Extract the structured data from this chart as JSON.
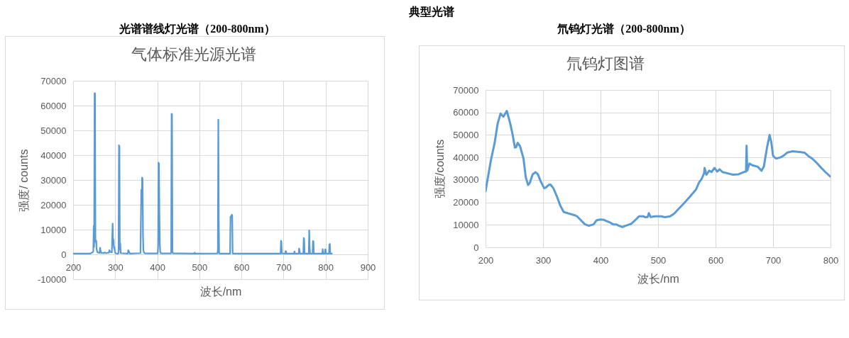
{
  "chart_data": [
    {
      "type": "line",
      "title": "光谱谱线灯光谱（200-800nm）",
      "subtitle": "气体标准光源光谱",
      "xlabel": "波长/nm",
      "ylabel": "强度/ counts",
      "annotations": [
        "典型光谱"
      ],
      "series": [
        {
          "color": "#5b9bd5",
          "x": [
            200,
            240,
            246,
            248,
            249,
            250,
            251,
            252,
            253,
            255,
            256,
            258,
            263,
            264,
            265,
            267,
            272,
            275,
            278,
            285,
            286,
            288,
            292,
            293,
            294,
            295,
            296,
            297,
            298,
            299,
            300,
            302,
            306,
            308,
            309,
            310,
            311,
            312,
            313,
            330,
            331,
            333,
            335,
            360,
            362,
            363,
            364,
            365,
            366,
            367,
            369,
            372,
            401,
            402,
            403,
            404,
            405,
            406,
            407,
            409,
            433,
            434,
            435,
            436,
            438,
            488,
            489,
            490,
            543,
            544,
            545,
            546,
            547,
            549,
            573,
            574,
            575,
            576,
            577,
            578,
            579,
            581,
            693,
            694,
            695,
            696,
            704,
            705,
            706,
            707,
            725,
            726,
            727,
            736,
            737,
            738,
            739,
            747,
            748,
            749,
            750,
            760,
            761,
            762,
            763,
            769,
            770,
            771,
            772,
            792,
            793,
            794,
            798,
            799,
            800,
            801,
            808,
            809,
            810,
            811,
            815
          ],
          "values": [
            300,
            300,
            800,
            1200,
            11500,
            3000,
            65000,
            65000,
            5000,
            5500,
            2000,
            800,
            600,
            2700,
            1500,
            600,
            500,
            800,
            500,
            700,
            1700,
            1000,
            800,
            7000,
            12400,
            4000,
            6000,
            2500,
            3000,
            1500,
            600,
            400,
            300,
            500,
            44000,
            43500,
            2000,
            4500,
            500,
            300,
            1700,
            1000,
            300,
            500,
            26000,
            20000,
            31000,
            30500,
            8000,
            1500,
            600,
            400,
            400,
            3500,
            37000,
            36500,
            17000,
            4000,
            1000,
            400,
            400,
            56700,
            56500,
            1000,
            400,
            300,
            700,
            300,
            400,
            2000,
            54300,
            14000,
            500,
            300,
            300,
            15200,
            15000,
            15500,
            16000,
            15800,
            400,
            300,
            300,
            5500,
            5000,
            400,
            300,
            1300,
            1200,
            300,
            300,
            1200,
            300,
            300,
            2400,
            1500,
            300,
            300,
            6600,
            6200,
            300,
            300,
            9700,
            3000,
            300,
            300,
            5400,
            5200,
            300,
            300,
            2100,
            300,
            300,
            2000,
            1900,
            300,
            300,
            4000,
            4200,
            300,
            300
          ]
        }
      ],
      "xlim": [
        200,
        900
      ],
      "xticks": [
        200,
        300,
        400,
        500,
        600,
        700,
        800,
        900
      ],
      "ylim": [
        -10000,
        70000
      ],
      "yticks": [
        -10000,
        0,
        10000,
        20000,
        30000,
        40000,
        50000,
        60000,
        70000
      ],
      "grid": true
    },
    {
      "type": "line",
      "title": "氘钨灯光谱（200-800nm）",
      "subtitle": "氘钨灯图谱",
      "xlabel": "波长/nm",
      "ylabel": "强度/counts",
      "series": [
        {
          "color": "#5b9bd5",
          "x": [
            200,
            209,
            216,
            221,
            226,
            231,
            237,
            243,
            247,
            251,
            253,
            256,
            260,
            266,
            270,
            274,
            277,
            282,
            287,
            291,
            296,
            302,
            305,
            310,
            313,
            318,
            324,
            330,
            336,
            345,
            356,
            359,
            366,
            373,
            380,
            388,
            393,
            399,
            406,
            416,
            422,
            427,
            432,
            438,
            446,
            453,
            460,
            467,
            474,
            478,
            482,
            484,
            487,
            495,
            505,
            512,
            521,
            528,
            537,
            547,
            556,
            566,
            571,
            576,
            580,
            581,
            584,
            589,
            593,
            598,
            603,
            607,
            612,
            621,
            630,
            640,
            649,
            653,
            654,
            655,
            659,
            664,
            673,
            680,
            684,
            689,
            694,
            697,
            700,
            705,
            713,
            718,
            725,
            734,
            746,
            755,
            761,
            768,
            777,
            784,
            791,
            800
          ],
          "values": [
            25000,
            38300,
            46700,
            55000,
            59500,
            58100,
            60700,
            55000,
            50300,
            44400,
            44500,
            46500,
            45000,
            39500,
            31100,
            27700,
            28700,
            32500,
            33400,
            32500,
            29300,
            26300,
            26600,
            27800,
            27900,
            26300,
            22700,
            18500,
            15700,
            15000,
            14200,
            13800,
            12000,
            10200,
            9600,
            10200,
            12000,
            12400,
            12200,
            11100,
            10200,
            10200,
            9600,
            9000,
            9800,
            10400,
            12000,
            13800,
            13800,
            13400,
            13500,
            15200,
            13500,
            13800,
            13800,
            13400,
            13800,
            15000,
            17400,
            20100,
            22700,
            25700,
            28700,
            30500,
            32900,
            35300,
            32300,
            34100,
            33500,
            35300,
            33700,
            34700,
            33500,
            32900,
            32300,
            32500,
            33500,
            33700,
            45200,
            34100,
            37300,
            36500,
            35900,
            34100,
            35900,
            43700,
            50000,
            46700,
            40700,
            39500,
            40000,
            40700,
            42200,
            42700,
            42400,
            42100,
            40700,
            39500,
            37300,
            35300,
            33500,
            31400
          ]
        }
      ],
      "xlim": [
        200,
        800
      ],
      "xticks": [
        200,
        300,
        400,
        500,
        600,
        700,
        800
      ],
      "ylim": [
        0,
        70000
      ],
      "yticks": [
        0,
        10000,
        20000,
        30000,
        40000,
        50000,
        60000,
        70000
      ],
      "grid": true
    }
  ]
}
